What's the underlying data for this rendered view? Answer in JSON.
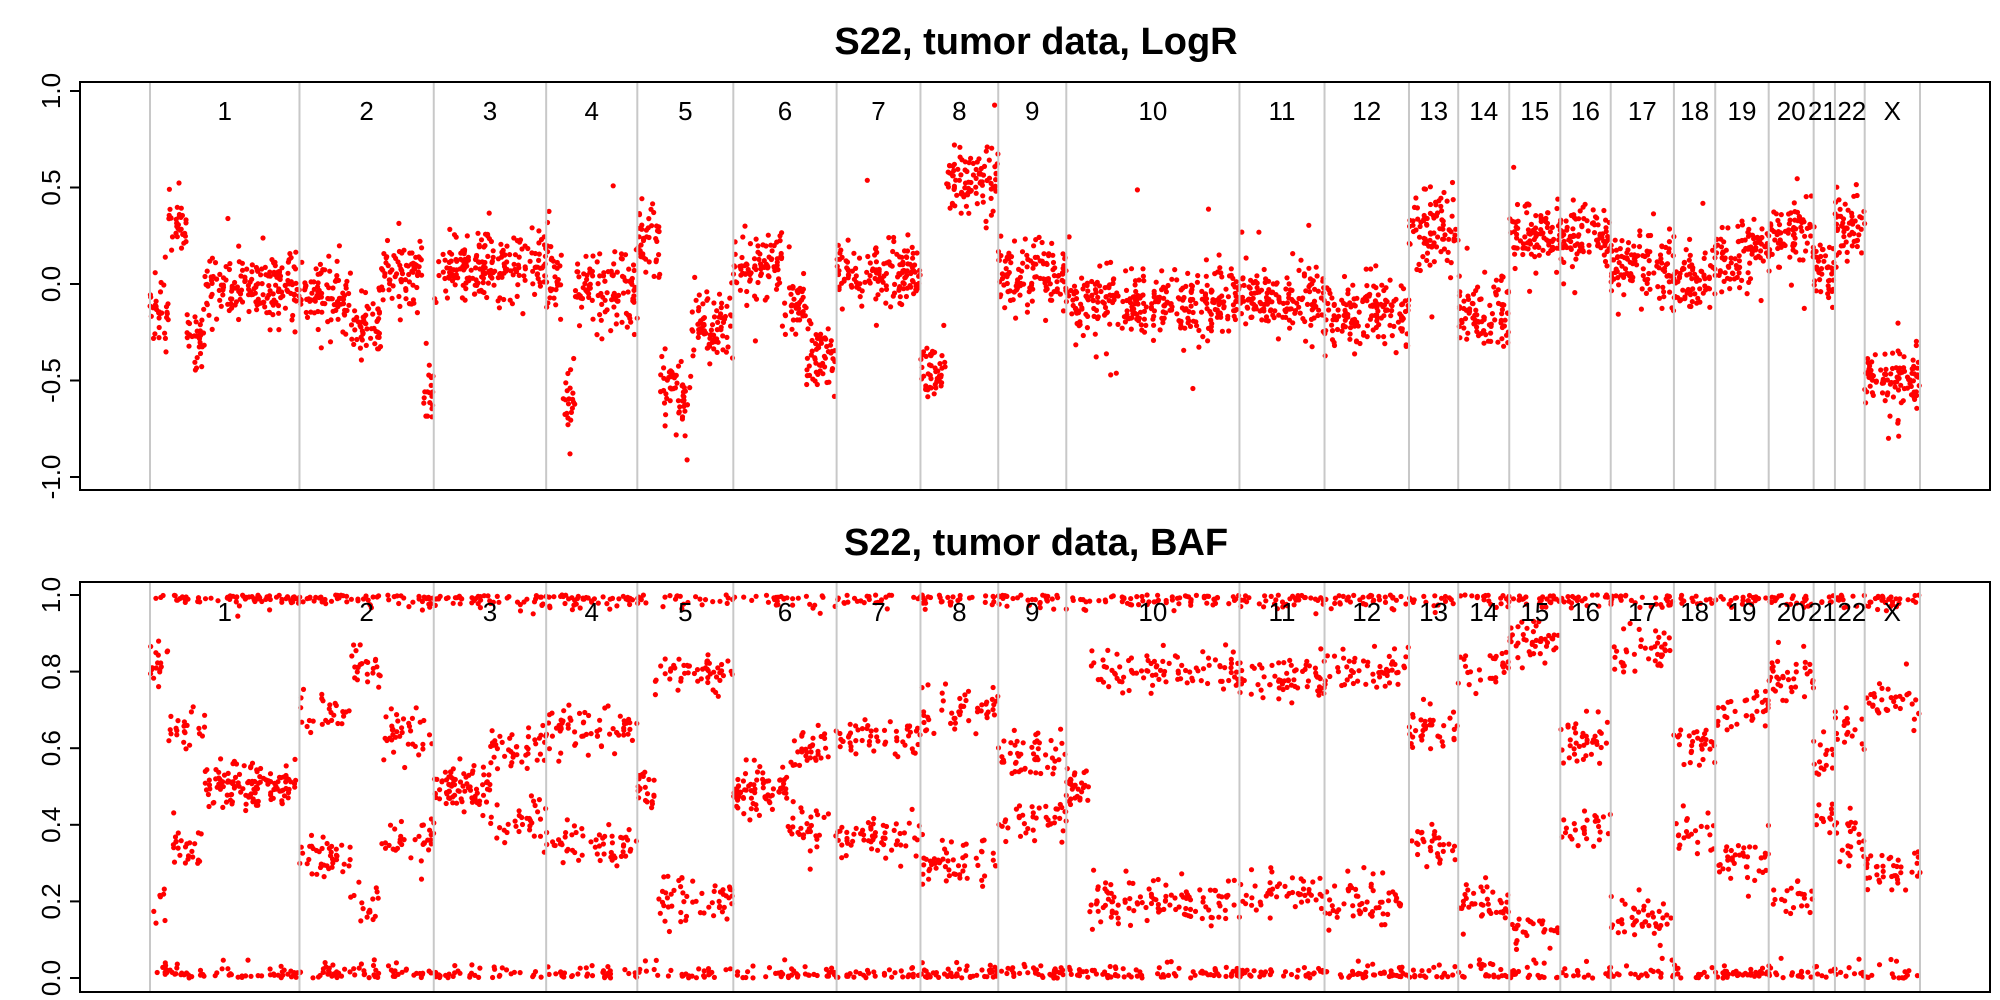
{
  "chart_data": [
    {
      "type": "scatter",
      "title": "S22, tumor data, LogR",
      "xlabel": "",
      "ylabel": "",
      "ylim": [
        -1.0,
        1.0
      ],
      "yticks": [
        "-1.0",
        "-0.5",
        "0.0",
        "0.5",
        "1.0"
      ],
      "point_color": "#ff0000",
      "grid": false,
      "chromosomes": [
        "1",
        "2",
        "3",
        "4",
        "5",
        "6",
        "7",
        "8",
        "9",
        "10",
        "11",
        "12",
        "13",
        "14",
        "15",
        "16",
        "17",
        "18",
        "19",
        "20",
        "21",
        "22",
        "X"
      ],
      "chromosome_extents": [
        [
          0,
          246
        ],
        [
          246,
          467
        ],
        [
          467,
          652
        ],
        [
          652,
          802
        ],
        [
          802,
          960
        ],
        [
          960,
          1130
        ],
        [
          1130,
          1268
        ],
        [
          1268,
          1396
        ],
        [
          1396,
          1508
        ],
        [
          1508,
          1793
        ],
        [
          1793,
          1933
        ],
        [
          1933,
          2072
        ],
        [
          2072,
          2153
        ],
        [
          2153,
          2237
        ],
        [
          2237,
          2321
        ],
        [
          2321,
          2404
        ],
        [
          2404,
          2508
        ],
        [
          2508,
          2576
        ],
        [
          2576,
          2664
        ],
        [
          2664,
          2738
        ],
        [
          2738,
          2773
        ],
        [
          2773,
          2822
        ],
        [
          2822,
          2913
        ]
      ],
      "segments": [
        {
          "chr": "1",
          "x": [
            0,
            30
          ],
          "y": -0.15
        },
        {
          "chr": "1",
          "x": [
            30,
            60
          ],
          "y": 0.3
        },
        {
          "chr": "1",
          "x": [
            60,
            90
          ],
          "y": -0.25
        },
        {
          "chr": "1",
          "x": [
            90,
            246
          ],
          "y": -0.02
        },
        {
          "chr": "2",
          "x": [
            246,
            330
          ],
          "y": -0.05
        },
        {
          "chr": "2",
          "x": [
            330,
            380
          ],
          "y": -0.2
        },
        {
          "chr": "2",
          "x": [
            380,
            450
          ],
          "y": 0.05
        },
        {
          "chr": "2",
          "x": [
            450,
            467
          ],
          "y": -0.6
        },
        {
          "chr": "3",
          "x": [
            467,
            652
          ],
          "y": 0.1
        },
        {
          "chr": "4",
          "x": [
            652,
            680
          ],
          "y": 0.05
        },
        {
          "chr": "4",
          "x": [
            680,
            700
          ],
          "y": -0.6
        },
        {
          "chr": "4",
          "x": [
            700,
            802
          ],
          "y": -0.02
        },
        {
          "chr": "5",
          "x": [
            802,
            840
          ],
          "y": 0.25
        },
        {
          "chr": "5",
          "x": [
            840,
            890
          ],
          "y": -0.55
        },
        {
          "chr": "5",
          "x": [
            890,
            960
          ],
          "y": -0.2
        },
        {
          "chr": "6",
          "x": [
            960,
            1040
          ],
          "y": 0.1
        },
        {
          "chr": "6",
          "x": [
            1040,
            1080
          ],
          "y": -0.1
        },
        {
          "chr": "6",
          "x": [
            1080,
            1130
          ],
          "y": -0.4
        },
        {
          "chr": "7",
          "x": [
            1130,
            1268
          ],
          "y": 0.05
        },
        {
          "chr": "8",
          "x": [
            1268,
            1310
          ],
          "y": -0.45
        },
        {
          "chr": "8",
          "x": [
            1310,
            1396
          ],
          "y": 0.55
        },
        {
          "chr": "9",
          "x": [
            1396,
            1508
          ],
          "y": 0.05
        },
        {
          "chr": "10",
          "x": [
            1508,
            1793
          ],
          "y": -0.1
        },
        {
          "chr": "11",
          "x": [
            1793,
            1933
          ],
          "y": -0.1
        },
        {
          "chr": "12",
          "x": [
            1933,
            2072
          ],
          "y": -0.15
        },
        {
          "chr": "13",
          "x": [
            2072,
            2153
          ],
          "y": 0.3
        },
        {
          "chr": "14",
          "x": [
            2153,
            2237
          ],
          "y": -0.15
        },
        {
          "chr": "15",
          "x": [
            2237,
            2321
          ],
          "y": 0.25
        },
        {
          "chr": "16",
          "x": [
            2321,
            2404
          ],
          "y": 0.25
        },
        {
          "chr": "17",
          "x": [
            2404,
            2508
          ],
          "y": 0.1
        },
        {
          "chr": "18",
          "x": [
            2508,
            2576
          ],
          "y": 0.0
        },
        {
          "chr": "19",
          "x": [
            2576,
            2664
          ],
          "y": 0.15
        },
        {
          "chr": "20",
          "x": [
            2664,
            2738
          ],
          "y": 0.25
        },
        {
          "chr": "21",
          "x": [
            2738,
            2773
          ],
          "y": 0.05
        },
        {
          "chr": "22",
          "x": [
            2773,
            2822
          ],
          "y": 0.3
        },
        {
          "chr": "X",
          "x": [
            2822,
            2913
          ],
          "y": -0.5
        }
      ]
    },
    {
      "type": "scatter",
      "title": "S22, tumor data, BAF",
      "xlabel": "",
      "ylabel": "",
      "ylim": [
        0.0,
        1.0
      ],
      "yticks": [
        "0.0",
        "0.2",
        "0.4",
        "0.6",
        "0.8",
        "1.0"
      ],
      "point_color": "#ff0000",
      "grid": false,
      "homozygous_bands": [
        0.0,
        1.0
      ],
      "segments": [
        {
          "chr": "1",
          "x": [
            0,
            30
          ],
          "baf": [
            0.18,
            0.82
          ]
        },
        {
          "chr": "1",
          "x": [
            30,
            90
          ],
          "baf": [
            0.35,
            0.65
          ]
        },
        {
          "chr": "1",
          "x": [
            90,
            246
          ],
          "baf": [
            0.5
          ]
        },
        {
          "chr": "2",
          "x": [
            246,
            330
          ],
          "baf": [
            0.32,
            0.68
          ]
        },
        {
          "chr": "2",
          "x": [
            330,
            380
          ],
          "baf": [
            0.2,
            0.8
          ]
        },
        {
          "chr": "2",
          "x": [
            380,
            467
          ],
          "baf": [
            0.36,
            0.64
          ]
        },
        {
          "chr": "3",
          "x": [
            467,
            560
          ],
          "baf": [
            0.5
          ]
        },
        {
          "chr": "3",
          "x": [
            560,
            652
          ],
          "baf": [
            0.4,
            0.6
          ]
        },
        {
          "chr": "4",
          "x": [
            652,
            802
          ],
          "baf": [
            0.35,
            0.65
          ]
        },
        {
          "chr": "5",
          "x": [
            802,
            830
          ],
          "baf": [
            0.5
          ]
        },
        {
          "chr": "5",
          "x": [
            830,
            960
          ],
          "baf": [
            0.2,
            0.8
          ]
        },
        {
          "chr": "6",
          "x": [
            960,
            1050
          ],
          "baf": [
            0.5
          ]
        },
        {
          "chr": "6",
          "x": [
            1050,
            1130
          ],
          "baf": [
            0.4,
            0.6
          ]
        },
        {
          "chr": "7",
          "x": [
            1130,
            1268
          ],
          "baf": [
            0.37,
            0.63
          ]
        },
        {
          "chr": "8",
          "x": [
            1268,
            1396
          ],
          "baf": [
            0.3,
            0.7
          ]
        },
        {
          "chr": "9",
          "x": [
            1396,
            1508
          ],
          "baf": [
            0.42,
            0.58
          ]
        },
        {
          "chr": "10",
          "x": [
            1508,
            1545
          ],
          "baf": [
            0.5
          ]
        },
        {
          "chr": "10",
          "x": [
            1545,
            1793
          ],
          "baf": [
            0.2,
            0.8
          ]
        },
        {
          "chr": "11",
          "x": [
            1793,
            1933
          ],
          "baf": [
            0.22,
            0.78
          ]
        },
        {
          "chr": "12",
          "x": [
            1933,
            2072
          ],
          "baf": [
            0.2,
            0.8
          ]
        },
        {
          "chr": "13",
          "x": [
            2072,
            2153
          ],
          "baf": [
            0.35,
            0.65
          ]
        },
        {
          "chr": "14",
          "x": [
            2153,
            2237
          ],
          "baf": [
            0.2,
            0.8
          ]
        },
        {
          "chr": "15",
          "x": [
            2237,
            2321
          ],
          "baf": [
            0.12,
            0.88
          ]
        },
        {
          "chr": "16",
          "x": [
            2321,
            2404
          ],
          "baf": [
            0.38,
            0.62
          ]
        },
        {
          "chr": "17",
          "x": [
            2404,
            2508
          ],
          "baf": [
            0.15,
            0.85
          ]
        },
        {
          "chr": "18",
          "x": [
            2508,
            2576
          ],
          "baf": [
            0.38,
            0.62
          ]
        },
        {
          "chr": "19",
          "x": [
            2576,
            2664
          ],
          "baf": [
            0.3,
            0.7
          ]
        },
        {
          "chr": "20",
          "x": [
            2664,
            2738
          ],
          "baf": [
            0.22,
            0.78
          ]
        },
        {
          "chr": "21",
          "x": [
            2738,
            2773
          ],
          "baf": [
            0.42,
            0.58
          ]
        },
        {
          "chr": "22",
          "x": [
            2773,
            2822
          ],
          "baf": [
            0.35,
            0.65
          ]
        },
        {
          "chr": "X",
          "x": [
            2822,
            2913
          ],
          "baf": [
            0.28,
            0.72
          ]
        }
      ]
    }
  ]
}
